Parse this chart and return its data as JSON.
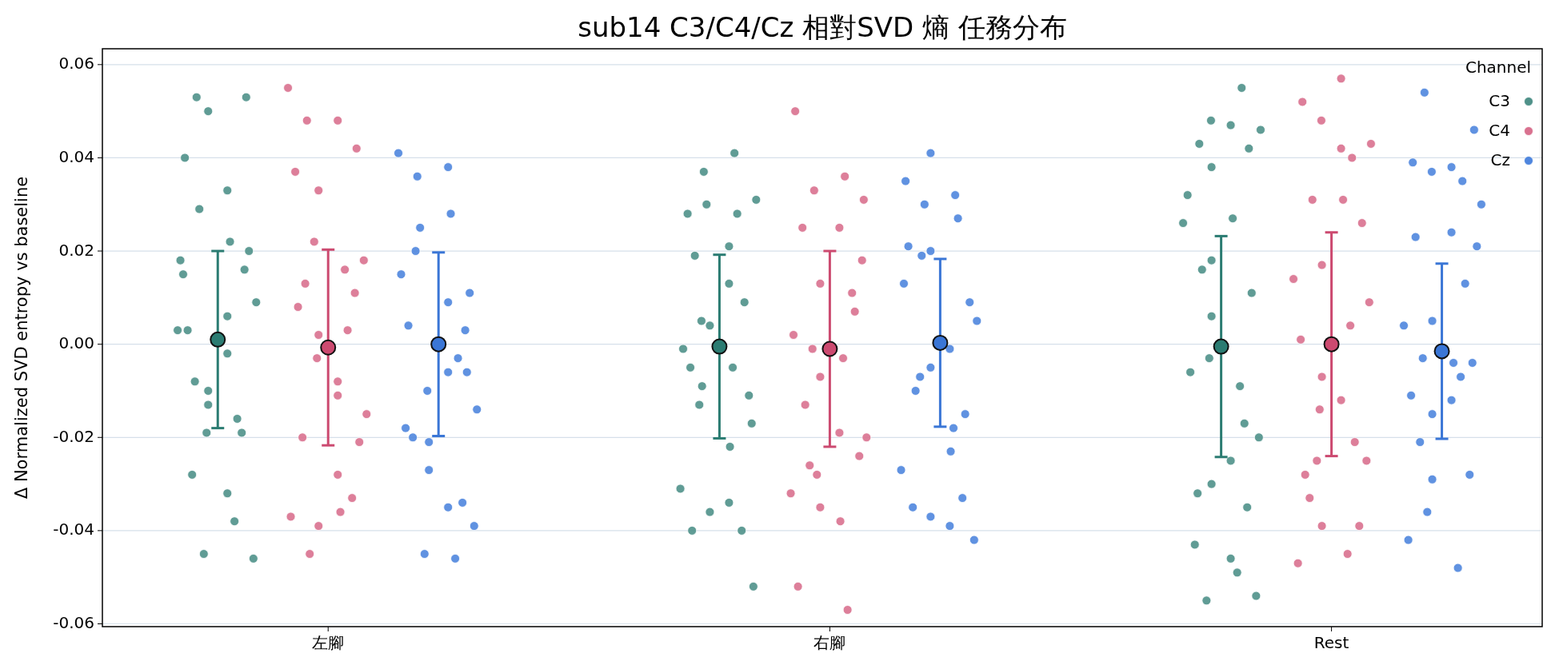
{
  "chart_data": {
    "type": "scatter",
    "title": "sub14 C3/C4/Cz 相對SVD 熵 任務分布",
    "ylabel": "Δ Normalized SVD entropy vs baseline",
    "legend_title": "Channel",
    "legend": "top right",
    "grid": "y",
    "marker": "circle",
    "categories": [
      "左腳",
      "右腳",
      "Rest"
    ],
    "ylim": [
      -0.0606,
      0.0634
    ],
    "yticks": [
      {
        "value": -0.06,
        "label": "-0.06"
      },
      {
        "value": -0.04,
        "label": "-0.04"
      },
      {
        "value": -0.02,
        "label": "-0.02"
      },
      {
        "value": 0,
        "label": "0.00"
      },
      {
        "value": 0.02,
        "label": "0.02"
      },
      {
        "value": 0.04,
        "label": "0.04"
      },
      {
        "value": 0.06,
        "label": "0.06"
      }
    ],
    "series": [
      {
        "name": "C3",
        "color": "#4f9189",
        "x": [
          "左腳",
          "左腳",
          "左腳",
          "左腳",
          "左腳",
          "左腳",
          "左腳",
          "左腳",
          "左腳",
          "左腳",
          "左腳",
          "左腳",
          "左腳",
          "左腳",
          "左腳",
          "左腳",
          "左腳",
          "左腳",
          "左腳",
          "左腳",
          "左腳",
          "左腳",
          "左腳",
          "左腳",
          "左腳",
          "左腳",
          "左腳",
          "右腳",
          "右腳",
          "右腳",
          "右腳",
          "右腳",
          "右腳",
          "右腳",
          "右腳",
          "右腳",
          "右腳",
          "右腳",
          "右腳",
          "右腳",
          "右腳",
          "右腳",
          "右腳",
          "右腳",
          "右腳",
          "右腳",
          "右腳",
          "右腳",
          "右腳",
          "右腳",
          "右腳",
          "右腳",
          "右腳",
          "Rest",
          "Rest",
          "Rest",
          "Rest",
          "Rest",
          "Rest",
          "Rest",
          "Rest",
          "Rest",
          "Rest",
          "Rest",
          "Rest",
          "Rest",
          "Rest",
          "Rest",
          "Rest",
          "Rest",
          "Rest",
          "Rest",
          "Rest",
          "Rest",
          "Rest",
          "Rest",
          "Rest",
          "Rest",
          "Rest",
          "Rest",
          "Rest"
        ],
        "values": [
          0.003,
          0.033,
          0.053,
          0.053,
          0.05,
          0.04,
          -0.038,
          -0.045,
          -0.046,
          -0.032,
          -0.028,
          -0.019,
          -0.01,
          0.018,
          0.022,
          0.029,
          0.02,
          0.006,
          0.003,
          -0.016,
          -0.019,
          0.009,
          -0.002,
          -0.008,
          0.016,
          -0.013,
          0.015,
          0.041,
          0.037,
          -0.052,
          -0.034,
          -0.04,
          -0.04,
          -0.036,
          -0.031,
          -0.022,
          -0.013,
          -0.011,
          0.004,
          0.028,
          0.028,
          0.03,
          0.031,
          0.021,
          0.019,
          0.009,
          0.005,
          -0.001,
          -0.005,
          -0.009,
          -0.017,
          0.013,
          -0.005,
          0.055,
          0.048,
          0.046,
          0.047,
          0.043,
          0.042,
          0.038,
          0.032,
          -0.049,
          -0.055,
          -0.054,
          -0.046,
          -0.043,
          -0.017,
          0.018,
          0.026,
          0.027,
          0.016,
          0.011,
          0.006,
          -0.006,
          -0.009,
          -0.003,
          -0.02,
          -0.025,
          -0.032,
          -0.035,
          -0.03
        ]
      },
      {
        "name": "C4",
        "color": "#d9718f",
        "x": [
          "左腳",
          "左腳",
          "左腳",
          "左腳",
          "左腳",
          "左腳",
          "左腳",
          "左腳",
          "左腳",
          "左腳",
          "左腳",
          "左腳",
          "左腳",
          "左腳",
          "左腳",
          "左腳",
          "左腳",
          "左腳",
          "左腳",
          "左腳",
          "左腳",
          "左腳",
          "左腳",
          "左腳",
          "左腳",
          "左腳",
          "右腳",
          "右腳",
          "右腳",
          "右腳",
          "右腳",
          "右腳",
          "右腳",
          "右腳",
          "右腳",
          "右腳",
          "右腳",
          "右腳",
          "右腳",
          "右腳",
          "右腳",
          "右腳",
          "右腳",
          "右腳",
          "右腳",
          "右腳",
          "右腳",
          "右腳",
          "右腳",
          "右腳",
          "右腳",
          "Rest",
          "Rest",
          "Rest",
          "Rest",
          "Rest",
          "Rest",
          "Rest",
          "Rest",
          "Rest",
          "Rest",
          "Rest",
          "Rest",
          "Rest",
          "Rest",
          "Rest",
          "Rest",
          "Rest",
          "Rest",
          "Rest",
          "Rest",
          "Rest",
          "Rest",
          "Rest",
          "Rest",
          "Rest",
          "Rest"
        ],
        "values": [
          0.055,
          0.048,
          0.048,
          0.042,
          0.033,
          0.037,
          0.016,
          0.022,
          0.018,
          -0.011,
          -0.02,
          -0.033,
          -0.039,
          -0.037,
          -0.036,
          -0.045,
          -0.021,
          -0.028,
          0.008,
          0.003,
          -0.003,
          -0.015,
          -0.008,
          0.013,
          0.011,
          0.002,
          0.05,
          0.036,
          0.033,
          0.031,
          0.025,
          0.025,
          0.011,
          -0.007,
          -0.032,
          -0.038,
          -0.026,
          -0.024,
          -0.035,
          -0.052,
          -0.057,
          -0.028,
          -0.02,
          -0.019,
          -0.013,
          0.007,
          0.013,
          0.002,
          -0.003,
          -0.001,
          0.018,
          0.057,
          0.052,
          0.04,
          0.048,
          0.043,
          0.042,
          -0.033,
          -0.039,
          -0.039,
          -0.047,
          -0.045,
          -0.025,
          -0.025,
          -0.012,
          -0.028,
          -0.021,
          -0.007,
          0.014,
          0.031,
          0.031,
          0.026,
          0.017,
          0.001,
          0.004,
          -0.014,
          0.009
        ]
      },
      {
        "name": "Cz",
        "color": "#4f86de",
        "x": [
          "左腳",
          "左腳",
          "左腳",
          "左腳",
          "左腳",
          "左腳",
          "左腳",
          "左腳",
          "左腳",
          "左腳",
          "左腳",
          "左腳",
          "左腳",
          "左腳",
          "左腳",
          "左腳",
          "左腳",
          "左腳",
          "左腳",
          "左腳",
          "左腳",
          "左腳",
          "左腳",
          "左腳",
          "左腳",
          "右腳",
          "右腳",
          "右腳",
          "右腳",
          "右腳",
          "右腳",
          "右腳",
          "右腳",
          "右腳",
          "右腳",
          "右腳",
          "右腳",
          "右腳",
          "右腳",
          "右腳",
          "右腳",
          "右腳",
          "右腳",
          "右腳",
          "右腳",
          "右腳",
          "右腳",
          "右腳",
          "右腳",
          "Rest",
          "Rest",
          "Rest",
          "Rest",
          "Rest",
          "Rest",
          "Rest",
          "Rest",
          "Rest",
          "Rest",
          "Rest",
          "Rest",
          "Rest",
          "Rest",
          "Rest",
          "Rest",
          "Rest",
          "Rest",
          "Rest",
          "Rest",
          "Rest",
          "Rest",
          "Rest",
          "Rest",
          "Rest",
          "Rest"
        ],
        "values": [
          0.041,
          0.038,
          0.036,
          -0.006,
          -0.027,
          -0.018,
          -0.046,
          -0.045,
          -0.039,
          -0.035,
          -0.02,
          -0.034,
          -0.021,
          0.015,
          0.028,
          0.025,
          0.011,
          0.009,
          0.004,
          -0.003,
          -0.01,
          -0.014,
          -0.006,
          0.02,
          0.003,
          0.041,
          0.035,
          0.032,
          0.03,
          -0.042,
          -0.039,
          -0.035,
          -0.033,
          -0.037,
          -0.027,
          -0.023,
          -0.007,
          0.009,
          0.02,
          0.021,
          0.027,
          0.019,
          0.005,
          -0.001,
          -0.01,
          -0.015,
          -0.005,
          0.013,
          -0.018,
          0.054,
          0.046,
          0.038,
          0.039,
          0.035,
          0.037,
          0.03,
          -0.012,
          -0.021,
          -0.028,
          -0.029,
          -0.042,
          -0.048,
          -0.036,
          0.021,
          0.024,
          0.023,
          0.013,
          0.005,
          0.004,
          -0.004,
          -0.003,
          -0.004,
          -0.015,
          -0.011,
          -0.007
        ]
      },
      {
        "color": "#2b7c72",
        "x": [
          "左腳",
          "右腳",
          "Rest"
        ],
        "values": [
          0.001,
          -0.0005,
          -0.0005
        ],
        "errors": [
          0.019,
          0.0197,
          0.0237
        ]
      },
      {
        "color": "#cc4a70",
        "x": [
          "左腳",
          "右腳",
          "Rest"
        ],
        "values": [
          -0.0007,
          -0.001,
          0.0
        ],
        "errors": [
          0.021,
          0.021,
          0.024
        ]
      },
      {
        "color": "#3a76d6",
        "x": [
          "左腳",
          "右腳",
          "Rest"
        ],
        "values": [
          0.0,
          0.0003,
          -0.0015
        ],
        "errors": [
          0.0197,
          0.018,
          0.0188
        ]
      }
    ]
  }
}
